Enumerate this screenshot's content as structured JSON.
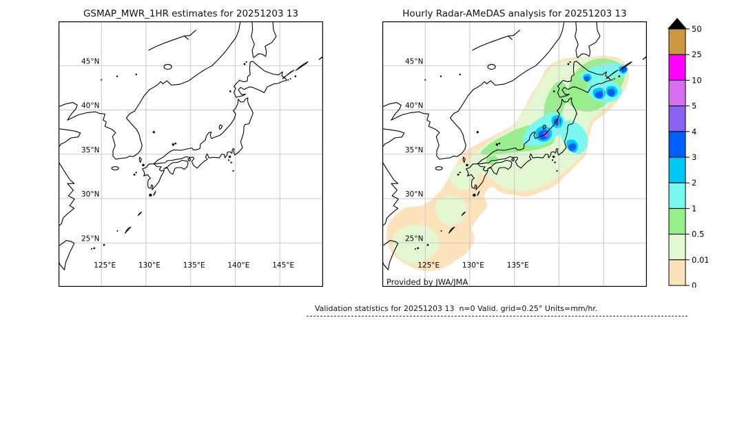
{
  "panels": {
    "left": {
      "title": "GSMAP_MWR_1HR estimates for 20251203 13",
      "lat_labels": [
        "45°N",
        "40°N",
        "35°N",
        "30°N",
        "25°N"
      ],
      "lon_labels": [
        "125°E",
        "130°E",
        "135°E",
        "140°E",
        "145°E"
      ]
    },
    "right": {
      "title": "Hourly Radar-AMeDAS analysis for 20251203 13",
      "lat_labels": [
        "45°N",
        "40°N",
        "35°N",
        "30°N",
        "25°N"
      ],
      "lon_labels": [
        "125°E",
        "130°E",
        "135°E"
      ],
      "credit": "Provided by JWA/JMA"
    }
  },
  "colorbar": {
    "tick_labels": [
      "50",
      "25",
      "10",
      "5",
      "4",
      "3",
      "2",
      "1",
      "0.5",
      "0.01",
      "0"
    ]
  },
  "footer": {
    "text": "Validation statistics for 20251203 13  n=0 Valid. grid=0.25° Units=mm/hr."
  },
  "chart_data": {
    "type": "heatmap",
    "subtype": "geographic-precipitation-comparison",
    "units": "mm/hr",
    "panels": [
      {
        "title": "GSMAP_MWR_1HR estimates for 20251203 13",
        "lon_range": [
          120,
          150
        ],
        "lat_range": [
          20,
          50
        ],
        "grid_lons": [
          125,
          130,
          135,
          140,
          145
        ],
        "grid_lats": [
          25,
          30,
          35,
          40,
          45
        ],
        "precipitation": "none (map empty, no satellite estimates at this hour)"
      },
      {
        "title": "Hourly Radar-AMeDAS analysis for 20251203 13",
        "lon_range": [
          120,
          150
        ],
        "lat_range": [
          20,
          50
        ],
        "grid_lons": [
          125,
          130,
          135,
          140,
          145
        ],
        "grid_lats": [
          25,
          30,
          35,
          40,
          45
        ],
        "precipitation": "trace-to-5 mm/hr band sweeping NE from Okinawa across Kyushu, Shikoku, central Honshu, Tohoku and Hokkaido; 2-4 mm/hr cores off Noto/Niigata coast (small 4-5 mm/hr spot), off Sanriku/Boso, southeast of Hokkaido and east of Nemuro"
      }
    ],
    "colorbar": {
      "units": "mm/hr",
      "levels": [
        0,
        0.01,
        0.5,
        1,
        2,
        3,
        4,
        5,
        10,
        25,
        50
      ],
      "colors": [
        "#fce3bc",
        "#e2f7d2",
        "#99ee8c",
        "#78f8f0",
        "#00c8f5",
        "#0060f5",
        "#8a64f0",
        "#d66ef0",
        "#ff00ff",
        "#cc9940"
      ],
      "over_color": "#000000",
      "orientation": "vertical",
      "position": "right"
    },
    "grid": true,
    "footer": "Validation statistics for 20251203 13  n=0 Valid. grid=0.25° Units=mm/hr."
  }
}
